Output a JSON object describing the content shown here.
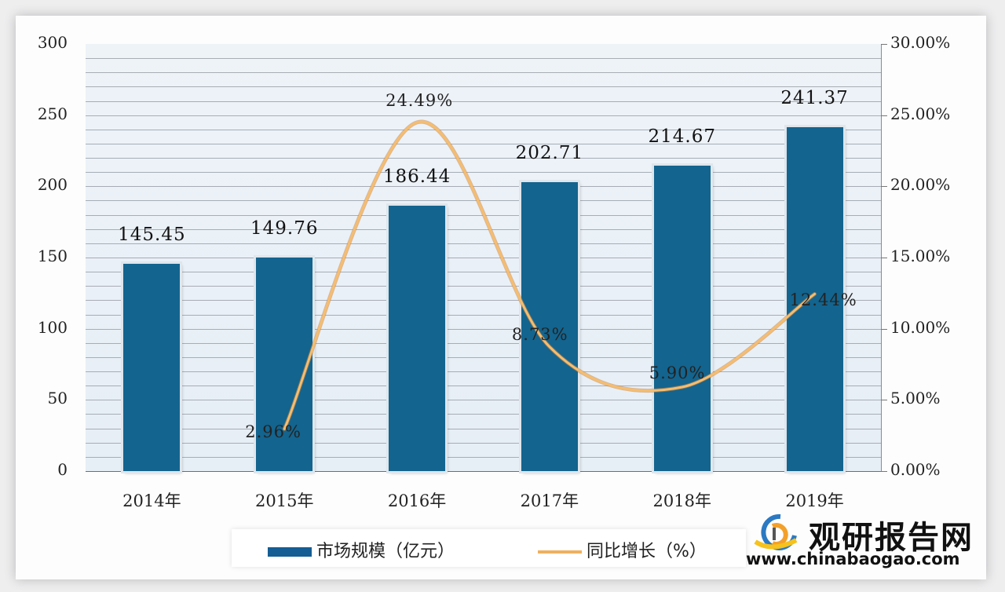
{
  "chart_data": {
    "type": "bar+line",
    "title": "",
    "categories": [
      "2014年",
      "2015年",
      "2016年",
      "2017年",
      "2018年",
      "2019年"
    ],
    "series": [
      {
        "name": "市场规模（亿元）",
        "type": "bar",
        "axis": "left",
        "values": [
          145.45,
          149.76,
          186.44,
          202.71,
          214.67,
          241.37
        ],
        "labels": [
          "145.45",
          "149.76",
          "186.44",
          "202.71",
          "214.67",
          "241.37"
        ],
        "color": "#13648e"
      },
      {
        "name": "同比增长（%）",
        "type": "line",
        "axis": "right",
        "values": [
          null,
          2.96,
          24.49,
          8.73,
          5.9,
          12.44
        ],
        "labels": [
          "",
          "2.96%",
          "24.49%",
          "8.73%",
          "5.90%",
          "12.44%"
        ],
        "color": "#f0a850"
      }
    ],
    "left_axis": {
      "ticks": [
        "0",
        "50",
        "100",
        "150",
        "200",
        "250",
        "300"
      ],
      "ylim": [
        0,
        300
      ]
    },
    "right_axis": {
      "ticks": [
        "0.00%",
        "5.00%",
        "10.00%",
        "15.00%",
        "20.00%",
        "25.00%",
        "30.00%"
      ],
      "ylim": [
        0,
        30
      ]
    },
    "grid": true,
    "legend_position": "bottom"
  },
  "legend": {
    "bar_label": "市场规模（亿元）",
    "line_label": "同比增长（%）"
  },
  "watermark": {
    "name": "观研报告网",
    "url": "www.chinabaogao.com"
  }
}
